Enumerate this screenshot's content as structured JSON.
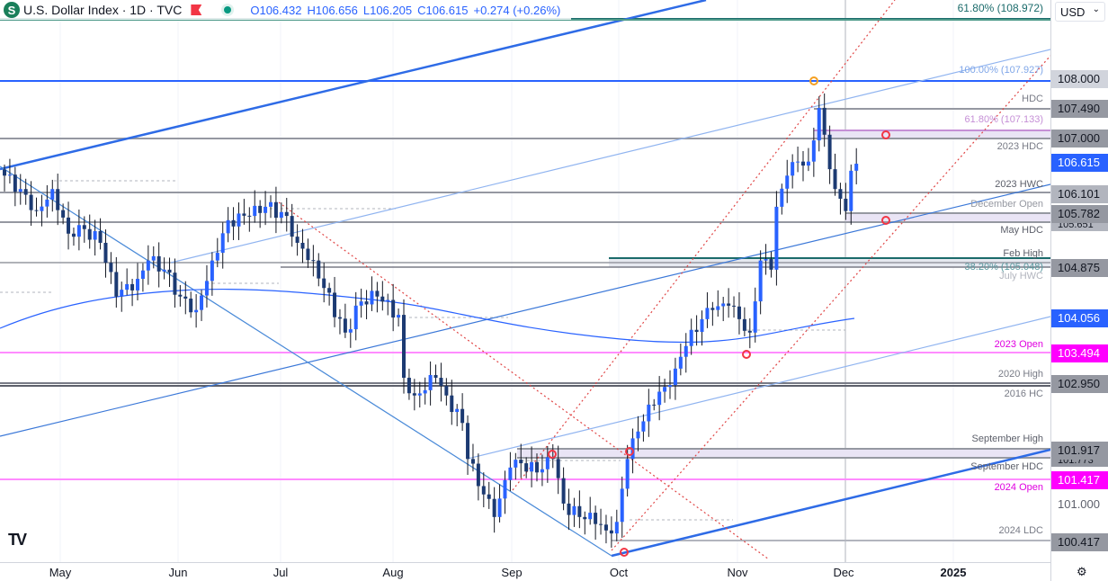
{
  "header": {
    "symbol_icon": "S",
    "title": "U.S. Dollar Index · 1D · TVC",
    "open": "O106.432",
    "high": "H106.656",
    "low": "L106.205",
    "close": "C106.615",
    "change": "+0.274 (+0.26%)"
  },
  "axis": {
    "currency": "USD",
    "settings_icon": "gear-icon"
  },
  "colors": {
    "up": "#2962ff",
    "down": "#1c3a72",
    "gray": "#9598a1",
    "magenta": "#ff00ff",
    "teal": "#1b6b6b",
    "fib": "#c58fd6"
  },
  "chart_data": {
    "type": "candlestick",
    "title": "U.S. Dollar Index · 1D · TVC",
    "x_ticks": [
      "May",
      "Jun",
      "Jul",
      "Aug",
      "Sep",
      "Oct",
      "Nov",
      "Dec",
      "2025"
    ],
    "ylim": [
      100.2,
      109.1
    ],
    "close_waypoints": [
      [
        0,
        106.42
      ],
      [
        3,
        106.2
      ],
      [
        6,
        105.84
      ],
      [
        9,
        106.2
      ],
      [
        12,
        105.47
      ],
      [
        14,
        105.61
      ],
      [
        18,
        105.32
      ],
      [
        21,
        104.44
      ],
      [
        25,
        104.73
      ],
      [
        27,
        105.03
      ],
      [
        30,
        104.88
      ],
      [
        33,
        104.44
      ],
      [
        36,
        104.22
      ],
      [
        39,
        105.03
      ],
      [
        42,
        105.69
      ],
      [
        46,
        105.76
      ],
      [
        49,
        105.91
      ],
      [
        53,
        105.76
      ],
      [
        55,
        105.32
      ],
      [
        58,
        105.03
      ],
      [
        60,
        104.58
      ],
      [
        64,
        103.85
      ],
      [
        67,
        104.36
      ],
      [
        70,
        104.44
      ],
      [
        74,
        104.14
      ],
      [
        75,
        103.11
      ],
      [
        77,
        102.82
      ],
      [
        81,
        103.11
      ],
      [
        83,
        102.82
      ],
      [
        86,
        102.37
      ],
      [
        87,
        101.78
      ],
      [
        90,
        101.2
      ],
      [
        92,
        100.83
      ],
      [
        95,
        101.64
      ],
      [
        97,
        101.71
      ],
      [
        100,
        101.56
      ],
      [
        103,
        101.78
      ],
      [
        105,
        101.05
      ],
      [
        108,
        100.83
      ],
      [
        110,
        100.9
      ],
      [
        113,
        100.61
      ],
      [
        115,
        100.75
      ],
      [
        117,
        101.78
      ],
      [
        119,
        102.23
      ],
      [
        121,
        102.67
      ],
      [
        124,
        102.96
      ],
      [
        126,
        103.26
      ],
      [
        128,
        103.63
      ],
      [
        131,
        104.07
      ],
      [
        133,
        104.22
      ],
      [
        136,
        104.29
      ],
      [
        138,
        104.07
      ],
      [
        140,
        103.85
      ],
      [
        142,
        105.03
      ],
      [
        144,
        104.88
      ],
      [
        145,
        105.91
      ],
      [
        147,
        106.42
      ],
      [
        149,
        106.65
      ],
      [
        151,
        106.65
      ],
      [
        153,
        107.53
      ],
      [
        154,
        107.09
      ],
      [
        156,
        106.2
      ],
      [
        158,
        105.84
      ],
      [
        159,
        106.5
      ],
      [
        160,
        106.615
      ]
    ],
    "price_labels": [
      {
        "value": "108.000",
        "text": "100.00% (107.927)",
        "kind": "blue-line"
      },
      {
        "value": "107.490",
        "text": "HDC"
      },
      {
        "value": "107.000",
        "text": "2023 HDC",
        "fib": "61.80% (107.133)"
      },
      {
        "value": "106.615",
        "text": "",
        "current": true
      },
      {
        "value": "106.101",
        "text": "2023 HWC"
      },
      {
        "value": "105.782",
        "text": "December Open",
        "hidden": "105.651",
        "hidden_text": "May HDC"
      },
      {
        "value": "104.875",
        "text": "Feb High",
        "fib": "38.20% (105.048)",
        "extra": "July HWC"
      },
      {
        "value": "104.056",
        "text": "",
        "ma": true
      },
      {
        "value": "103.494",
        "text": "2023 Open"
      },
      {
        "value": "102.950",
        "text": "2020 High",
        "extra": "2016 HC"
      },
      {
        "value": "101.917",
        "text": "September High",
        "hidden": "101.773",
        "hidden_text": "September HDC"
      },
      {
        "value": "101.417",
        "text": "2024 Open"
      },
      {
        "value": "101.000",
        "text": ""
      },
      {
        "value": "100.417",
        "text": "2024 LDC"
      }
    ],
    "top_fib": "61.80% (108.972)"
  }
}
